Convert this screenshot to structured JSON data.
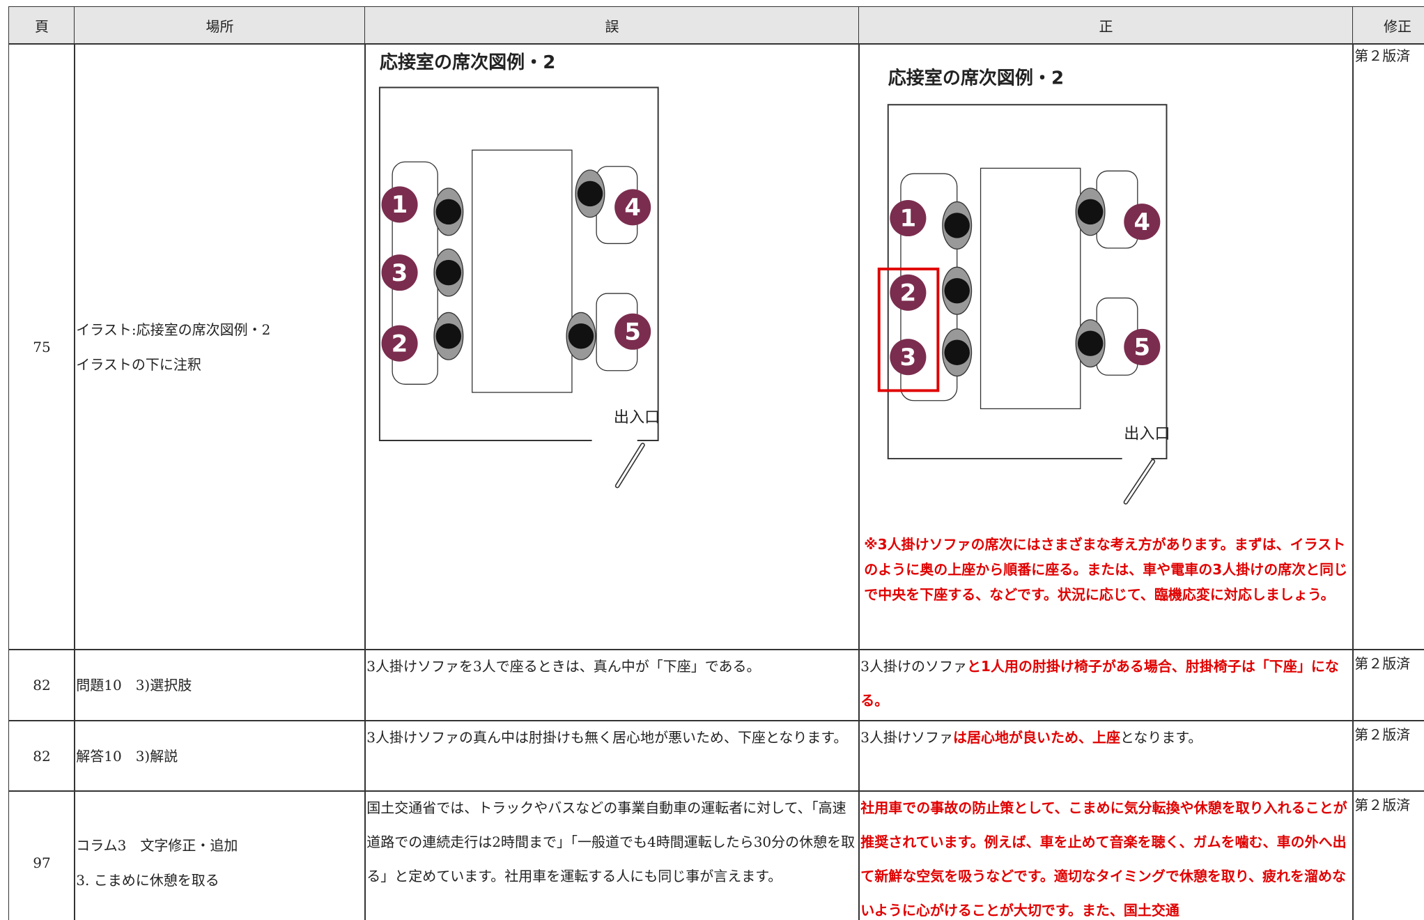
{
  "table": {
    "header": [
      "頁",
      "場所",
      "誤",
      "正",
      "修正"
    ],
    "rows": [
      {
        "page": "75",
        "location": [
          "イラスト:応接室の席次図例・2",
          "イラストの下に注釈"
        ],
        "wrong": {
          "figure": {
            "title": "応接室の席次図例・2",
            "seats": [
              "1",
              "3",
              "2",
              "4",
              "5"
            ],
            "door": "出入口"
          }
        },
        "correct": {
          "figure": {
            "title": "応接室の席次図例・2",
            "seats": [
              "1",
              "2",
              "3",
              "4",
              "5"
            ],
            "door": "出入口"
          },
          "note": "※3人掛けソファの席次にはさまざまな考え方があります。まずは、イラストのように奥の上座から順番に座る。または、車や電車の3人掛けの席次と同じで中央を下座する、などです。状況に応じて、臨機応変に対応しましょう。"
        },
        "fix": "第２版済"
      },
      {
        "page": "82",
        "location": [
          "問題10　3)選択肢"
        ],
        "wrong": "3人掛けソファを3人で座るときは、真ん中が「下座」である。",
        "correct": {
          "parts": [
            {
              "text": "3人掛けのソファ",
              "emphasis": false
            },
            {
              "text": "と1人用の肘掛け椅子がある場合、肘掛椅子は「下座」になる。",
              "emphasis": true
            }
          ]
        },
        "fix": "第２版済"
      },
      {
        "page": "82",
        "location": [
          "解答10　3)解説"
        ],
        "wrong": "3人掛けソファの真ん中は肘掛けも無く居心地が悪いため、下座となります。",
        "correct": {
          "parts": [
            {
              "text": "3人掛けソファ",
              "emphasis": false
            },
            {
              "text": "は居心地が良いため、上座",
              "emphasis": true
            },
            {
              "text": "となります。",
              "emphasis": false
            }
          ]
        },
        "fix": "第２版済"
      },
      {
        "page": "97",
        "location": [
          "コラム3　文字修正・追加",
          "3. こまめに休憩を取る"
        ],
        "wrong": "国土交通省では、トラックやバスなどの事業自動車の運転者に対して、「高速道路での連続走行は2時間まで」「一般道でも4時間運転したら30分の休憩を取る」と定めています。社用車を運転する人にも同じ事が言えます。",
        "correct": {
          "parts": [
            {
              "text": "社用車での事故の防止策として、こまめに気分転換や休憩を取り入れることが推奨されています。例えば、車を止めて音楽を聴く、ガムを噛む、車の外へ出て新鮮な空気を吸うなどです。適切なタイミングで休憩を取り、疲れを溜めないように心がけることが大切です。また、国土交通",
              "emphasis": true
            }
          ]
        },
        "fix": "第２版済"
      }
    ]
  }
}
